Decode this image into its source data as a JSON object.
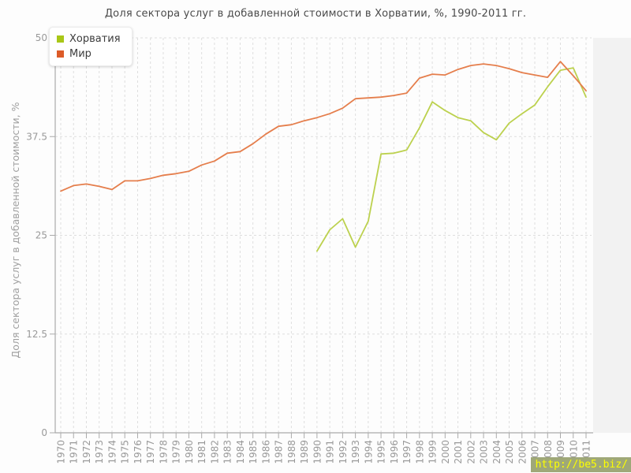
{
  "title": "Доля сектора услуг в добавленной стоимости в Хорватии, %, 1990-2011 гг.",
  "legend": {
    "position": "top-left",
    "items": [
      {
        "id": "croatia",
        "label": "Хорватия",
        "color": "#a9c717"
      },
      {
        "id": "world",
        "label": "Мир",
        "color": "#dc5b28"
      }
    ]
  },
  "y_axis": {
    "label": "Доля сектора услуг в добавленной стоимости, %",
    "tick_labels": [
      "0",
      "12.5",
      "25",
      "37.5",
      "50"
    ],
    "ticks": [
      0,
      12.5,
      25,
      37.5,
      50
    ],
    "min": 0,
    "max": 50
  },
  "watermark": {
    "text": "http://be5.biz/",
    "color": "#fdff00",
    "background": "#9fa878"
  },
  "colors": {
    "grid": "#dedede",
    "axis": "#aaaaaa",
    "tick_text": "#999999",
    "title_text": "#4a4a4a",
    "croatia_line": "#bcd14e",
    "world_line": "#e57e4c"
  },
  "chart_data": {
    "type": "line",
    "title": "Доля сектора услуг в добавленной стоимости в Хорватии, %, 1990-2011 гг.",
    "xlabel": "",
    "ylabel": "Доля сектора услуг в добавленной стоимости, %",
    "ylim": [
      0,
      50
    ],
    "grid": "dashed",
    "legend_position": "top-left",
    "x": [
      1970,
      1971,
      1972,
      1973,
      1974,
      1975,
      1976,
      1977,
      1978,
      1979,
      1980,
      1981,
      1982,
      1983,
      1984,
      1985,
      1986,
      1987,
      1988,
      1989,
      1990,
      1991,
      1992,
      1993,
      1994,
      1995,
      1996,
      1997,
      1998,
      1999,
      2000,
      2001,
      2002,
      2003,
      2004,
      2005,
      2006,
      2007,
      2008,
      2009,
      2010,
      2011
    ],
    "series": [
      {
        "id": "croatia",
        "name": "Хорватия",
        "color": "#bcd14e",
        "values": [
          null,
          null,
          null,
          null,
          null,
          null,
          null,
          null,
          null,
          null,
          null,
          null,
          null,
          null,
          null,
          null,
          null,
          null,
          null,
          null,
          23.0,
          25.7,
          27.1,
          23.5,
          26.8,
          35.3,
          35.4,
          35.8,
          38.6,
          41.9,
          40.8,
          39.9,
          39.5,
          38.0,
          37.1,
          39.2,
          40.4,
          41.5,
          43.8,
          45.9,
          46.2,
          42.5
        ]
      },
      {
        "id": "world",
        "name": "Мир",
        "color": "#e57e4c",
        "values": [
          30.6,
          31.3,
          31.5,
          31.2,
          30.8,
          31.9,
          31.9,
          32.2,
          32.6,
          32.8,
          33.1,
          33.9,
          34.4,
          35.4,
          35.6,
          36.6,
          37.8,
          38.8,
          39.0,
          39.5,
          39.9,
          40.4,
          41.1,
          42.3,
          42.4,
          42.5,
          42.7,
          43.0,
          44.9,
          45.4,
          45.3,
          46.0,
          46.5,
          46.7,
          46.5,
          46.1,
          45.6,
          45.3,
          45.0,
          47.0,
          45.2,
          43.3
        ]
      }
    ]
  }
}
